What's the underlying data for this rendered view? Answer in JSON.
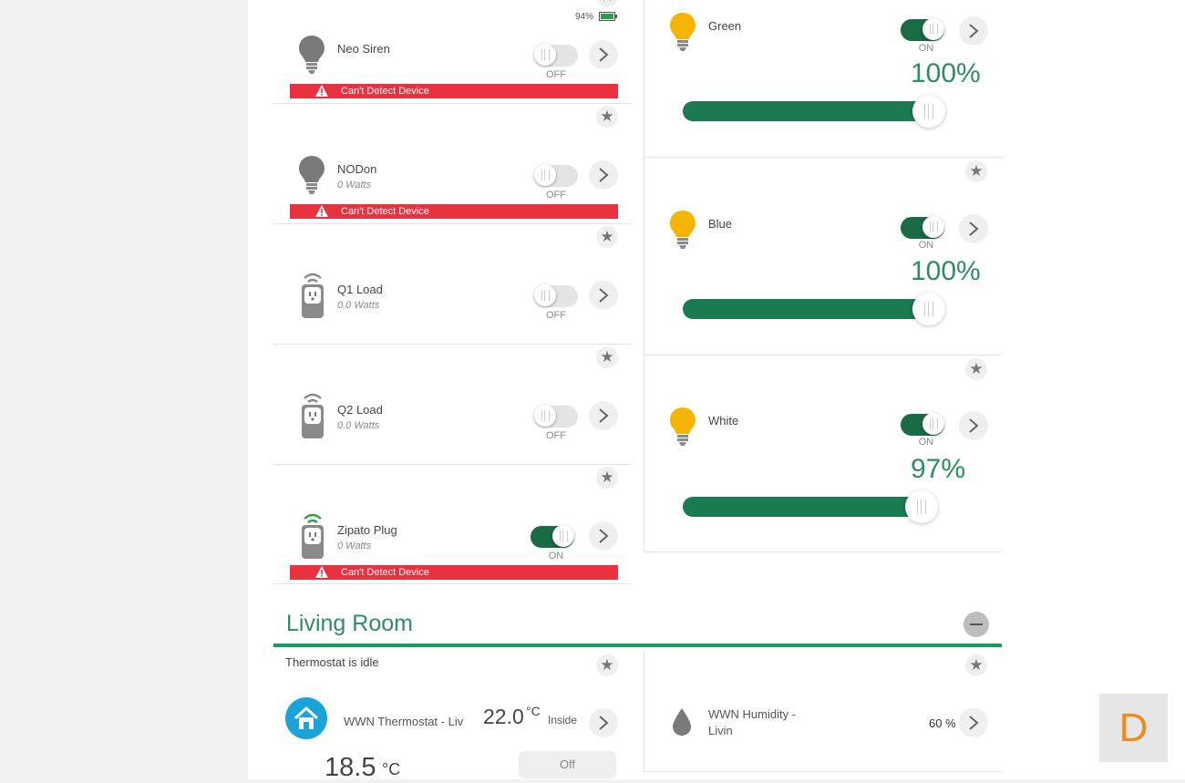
{
  "battery": {
    "percent": "94%"
  },
  "devices_left": [
    {
      "name": "Neo Siren",
      "sub": "",
      "state": "OFF",
      "alert": "Can't Detect Device"
    },
    {
      "name": "NODon",
      "sub": "0 Watts",
      "state": "OFF",
      "alert": "Can't Detect Device"
    },
    {
      "name": "Q1 Load",
      "sub": "0.0 Watts",
      "state": "OFF",
      "alert": ""
    },
    {
      "name": "Q2 Load",
      "sub": "0.0 Watts",
      "state": "OFF",
      "alert": ""
    },
    {
      "name": "Zipato Plug",
      "sub": "0 Watts",
      "state": "ON",
      "alert": "Can't Detect Device"
    }
  ],
  "devices_right": [
    {
      "name": "Green",
      "state": "ON",
      "level": "100%",
      "level_value": 100
    },
    {
      "name": "Blue",
      "state": "ON",
      "level": "100%",
      "level_value": 100
    },
    {
      "name": "White",
      "state": "ON",
      "level": "97%",
      "level_value": 97
    }
  ],
  "living_room": {
    "title": "Living Room",
    "thermostat_status": "Thermostat is idle",
    "thermostat_name": "WWN Thermostat - Liv",
    "inside_temp": "22.0",
    "inside_unit": "°C",
    "inside_label": "Inside",
    "setpoint_temp": "18.5",
    "setpoint_unit": "°C",
    "mode_label": "Off",
    "humidity_name_line1": "WWN Humidity -",
    "humidity_name_line2": "Livin",
    "humidity_value": "60 %"
  },
  "floating_button": {
    "label": "D"
  },
  "icons": {
    "star": "star-icon",
    "arrow": "chevron-right-icon",
    "bulb": "bulb-icon",
    "plug": "plug-icon",
    "home": "home-icon",
    "drop": "drop-icon",
    "battery": "battery-icon",
    "warning": "warning-icon"
  },
  "colors": {
    "accent_green": "#1a7a50",
    "alert_red": "#e8323f",
    "bulb_yellow": "#f5b400",
    "thermostat_blue": "#1aa3d9",
    "floating_orange": "#f08a1c"
  }
}
